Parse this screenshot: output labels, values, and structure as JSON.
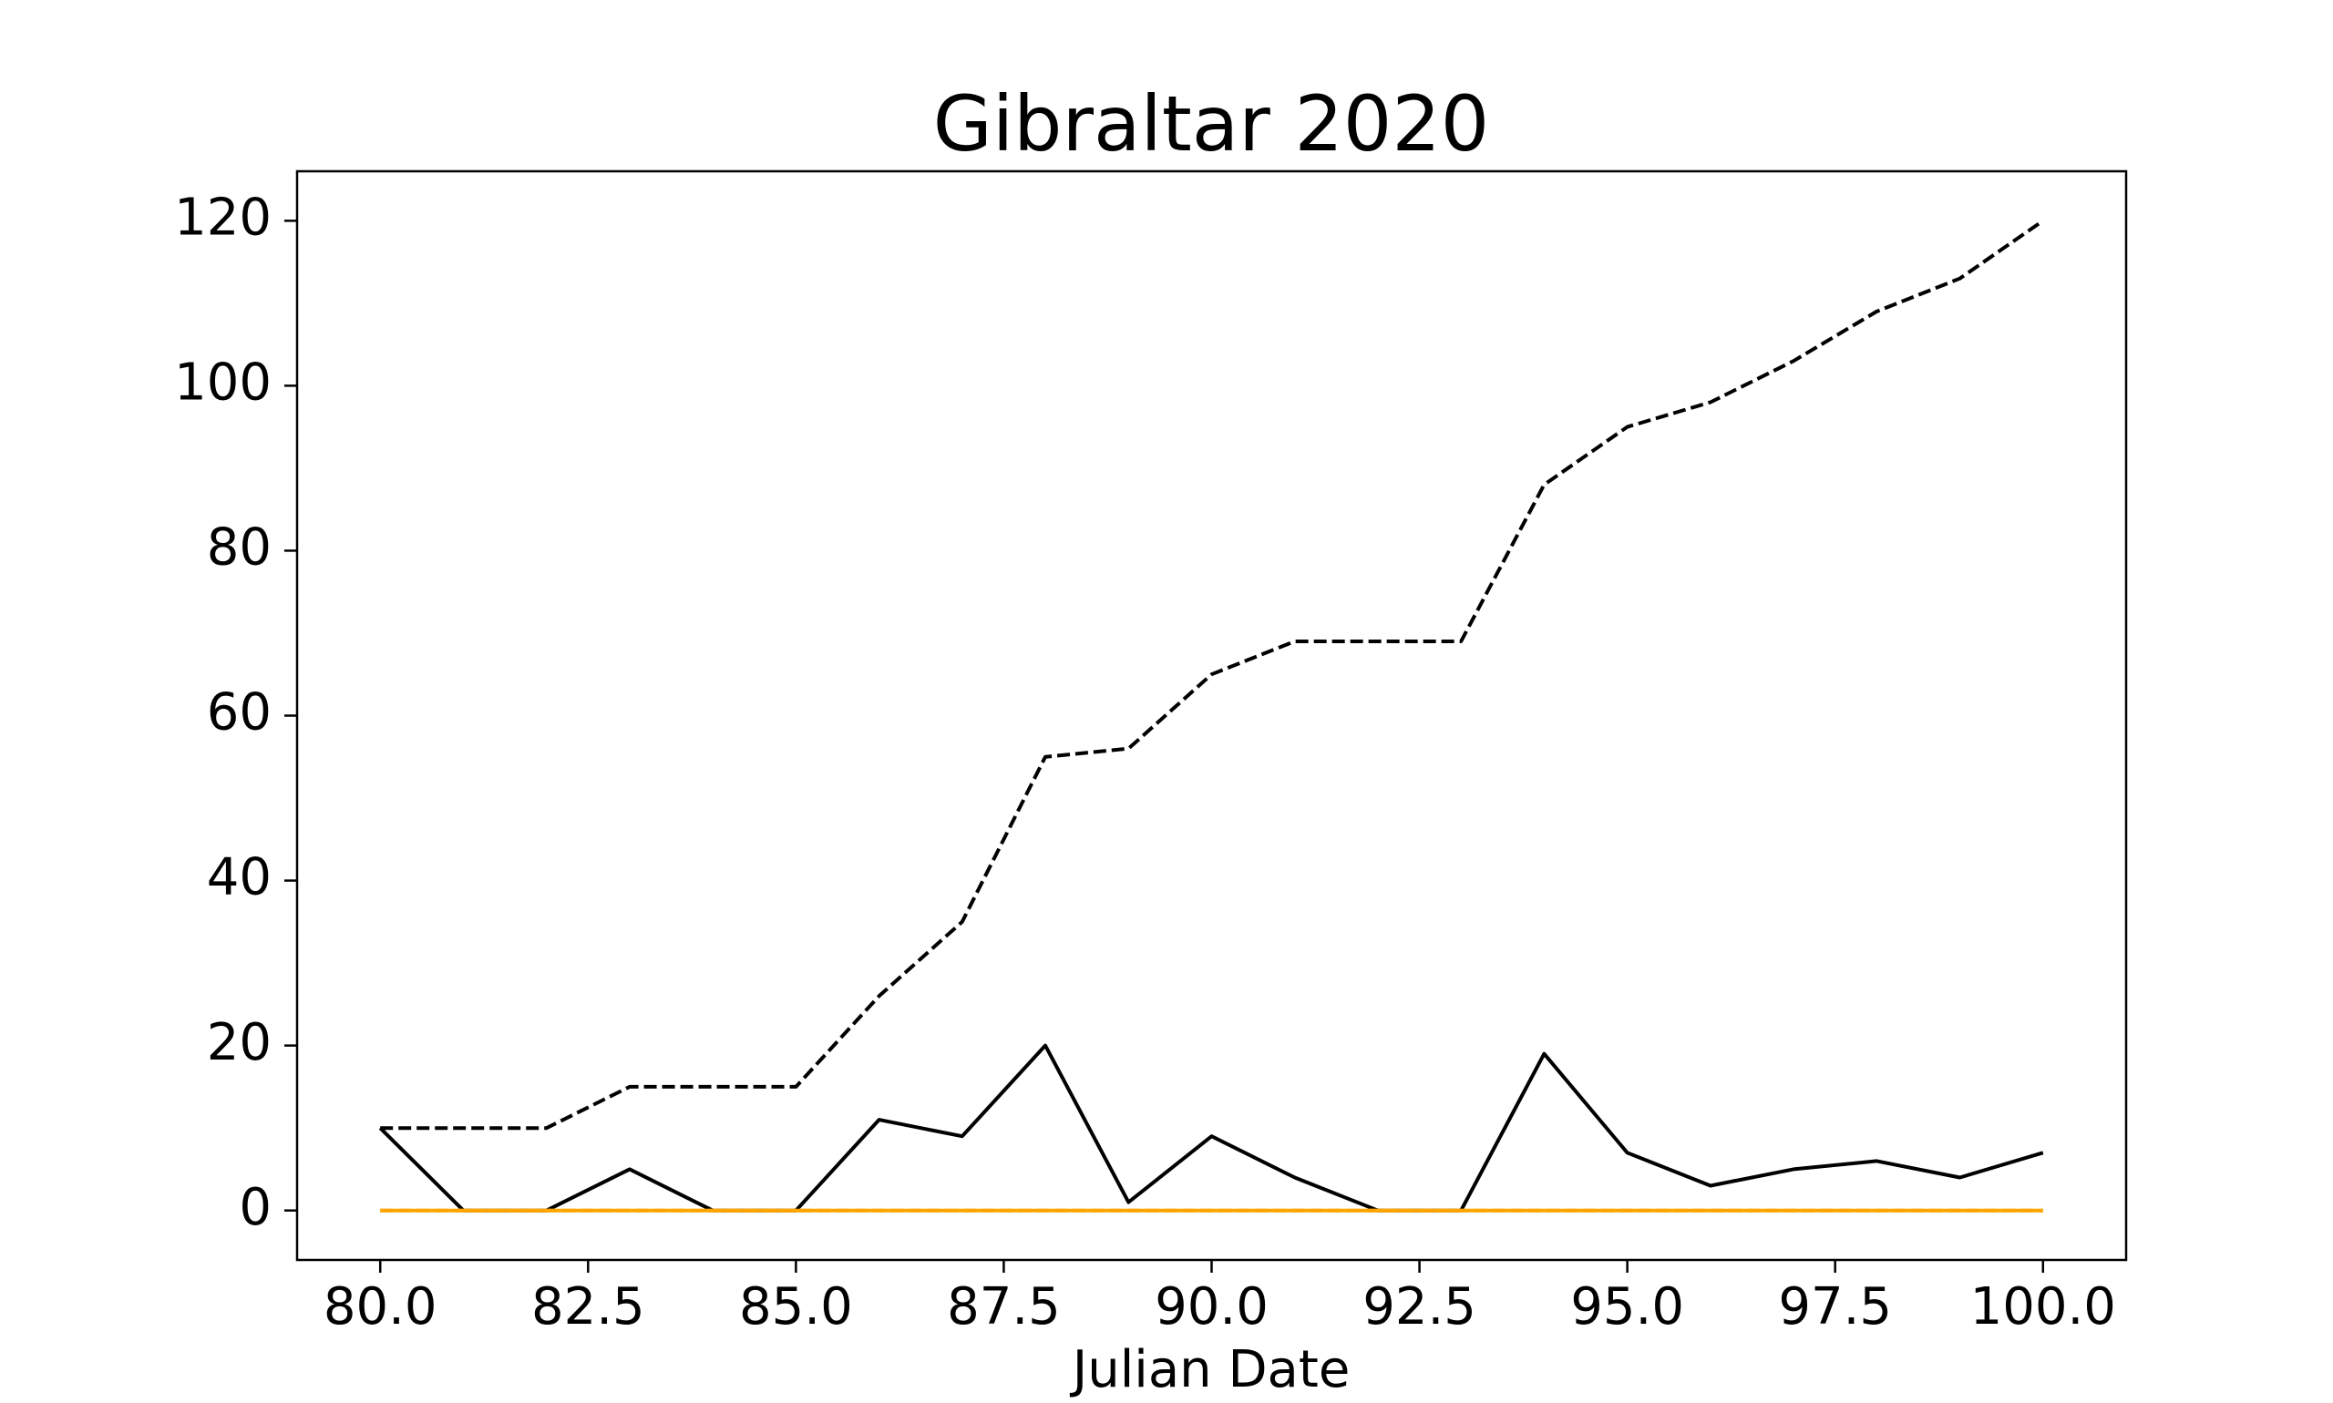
{
  "chart_data": {
    "type": "line",
    "title": "Gibraltar 2020",
    "xlabel": "Julian Date",
    "ylabel": "",
    "xlim": [
      79,
      101.0
    ],
    "ylim": [
      -6,
      126
    ],
    "xticks": [
      80.0,
      82.5,
      85.0,
      87.5,
      90.0,
      92.5,
      95.0,
      97.5,
      100.0
    ],
    "xtick_labels": [
      "80.0",
      "82.5",
      "85.0",
      "87.5",
      "90.0",
      "92.5",
      "95.0",
      "97.5",
      "100.0"
    ],
    "yticks": [
      0,
      20,
      40,
      60,
      80,
      100,
      120
    ],
    "ytick_labels": [
      "0",
      "20",
      "40",
      "60",
      "80",
      "100",
      "120"
    ],
    "grid": false,
    "legend": false,
    "x": [
      80,
      81,
      82,
      83,
      84,
      85,
      86,
      87,
      88,
      89,
      90,
      91,
      92,
      93,
      94,
      95,
      96,
      97,
      98,
      99,
      100
    ],
    "series": [
      {
        "values": [
          10,
          10,
          10,
          15,
          15,
          15,
          26,
          35,
          55,
          56,
          65,
          69,
          69,
          69,
          88,
          95,
          98,
          103,
          109,
          113,
          120
        ],
        "color": "#000000",
        "style": "dashed"
      },
      {
        "values": [
          10,
          0,
          0,
          5,
          0,
          0,
          11,
          9,
          20,
          1,
          9,
          4,
          0,
          0,
          19,
          7,
          3,
          5,
          6,
          4,
          7
        ],
        "color": "#000000",
        "style": "solid"
      },
      {
        "values": [
          0,
          0,
          0,
          0,
          0,
          0,
          0,
          0,
          0,
          0,
          0,
          0,
          0,
          0,
          0,
          0,
          0,
          0,
          0,
          0,
          0
        ],
        "color": "#ff9f1c",
        "style": "dashed"
      },
      {
        "values": [
          0,
          0,
          0,
          0,
          0,
          0,
          0,
          0,
          0,
          0,
          0,
          0,
          0,
          0,
          0,
          0,
          0,
          0,
          0,
          0,
          0
        ],
        "color": "#ffa500",
        "style": "solid"
      }
    ]
  }
}
